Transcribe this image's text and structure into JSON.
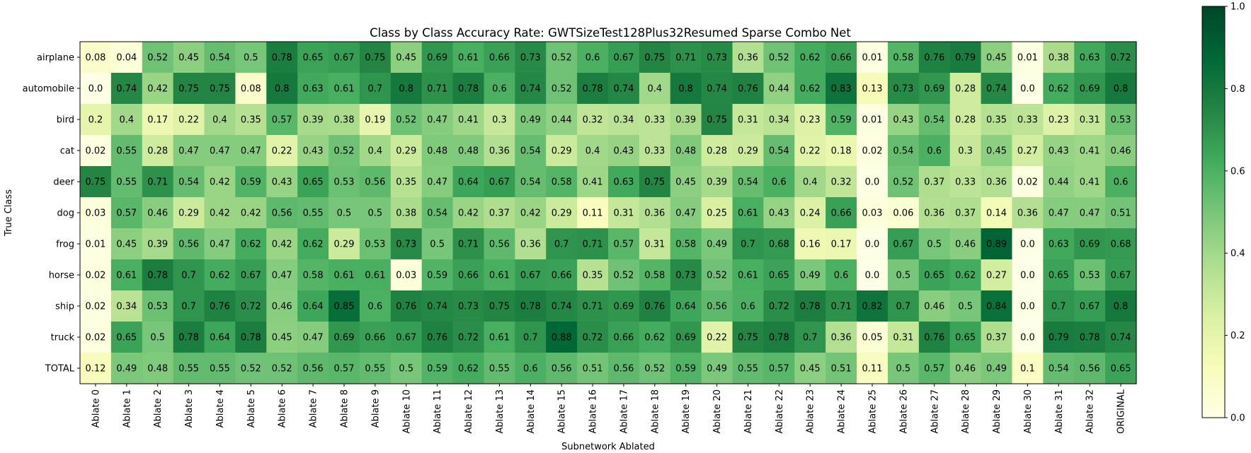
{
  "chart_data": {
    "type": "heatmap",
    "title": "Class by Class Accuracy Rate: GWTSizeTest128Plus32Resumed Sparse Combo Net",
    "xlabel": "Subnetwork Ablated",
    "ylabel": "True Class",
    "x_categories": [
      "Ablate 0",
      "Ablate 1",
      "Ablate 2",
      "Ablate 3",
      "Ablate 4",
      "Ablate 5",
      "Ablate 6",
      "Ablate 7",
      "Ablate 8",
      "Ablate 9",
      "Ablate 10",
      "Ablate 11",
      "Ablate 12",
      "Ablate 13",
      "Ablate 14",
      "Ablate 15",
      "Ablate 16",
      "Ablate 17",
      "Ablate 18",
      "Ablate 19",
      "Ablate 20",
      "Ablate 21",
      "Ablate 22",
      "Ablate 23",
      "Ablate 24",
      "Ablate 25",
      "Ablate 26",
      "Ablate 27",
      "Ablate 28",
      "Ablate 29",
      "Ablate 30",
      "Ablate 31",
      "Ablate 32",
      "ORIGINAL"
    ],
    "y_categories": [
      "airplane",
      "automobile",
      "bird",
      "cat",
      "deer",
      "dog",
      "frog",
      "horse",
      "ship",
      "truck",
      "TOTAL"
    ],
    "values": [
      [
        0.08,
        0.04,
        0.52,
        0.45,
        0.54,
        0.5,
        0.78,
        0.65,
        0.67,
        0.75,
        0.45,
        0.69,
        0.61,
        0.66,
        0.73,
        0.52,
        0.6,
        0.67,
        0.75,
        0.71,
        0.73,
        0.36,
        0.52,
        0.62,
        0.66,
        0.01,
        0.58,
        0.76,
        0.79,
        0.45,
        0.01,
        0.38,
        0.63,
        0.72
      ],
      [
        0.0,
        0.74,
        0.42,
        0.75,
        0.75,
        0.08,
        0.8,
        0.63,
        0.61,
        0.7,
        0.8,
        0.71,
        0.78,
        0.6,
        0.74,
        0.52,
        0.78,
        0.74,
        0.4,
        0.8,
        0.74,
        0.76,
        0.44,
        0.62,
        0.83,
        0.13,
        0.73,
        0.69,
        0.28,
        0.74,
        0.0,
        0.62,
        0.69,
        0.8
      ],
      [
        0.2,
        0.4,
        0.17,
        0.22,
        0.4,
        0.35,
        0.57,
        0.39,
        0.38,
        0.19,
        0.52,
        0.47,
        0.41,
        0.3,
        0.49,
        0.44,
        0.32,
        0.34,
        0.33,
        0.39,
        0.75,
        0.31,
        0.34,
        0.23,
        0.59,
        0.01,
        0.43,
        0.54,
        0.28,
        0.35,
        0.33,
        0.23,
        0.31,
        0.53
      ],
      [
        0.02,
        0.55,
        0.28,
        0.47,
        0.47,
        0.47,
        0.22,
        0.43,
        0.52,
        0.4,
        0.29,
        0.48,
        0.48,
        0.36,
        0.54,
        0.29,
        0.4,
        0.43,
        0.33,
        0.48,
        0.28,
        0.29,
        0.54,
        0.22,
        0.18,
        0.02,
        0.54,
        0.6,
        0.3,
        0.45,
        0.27,
        0.43,
        0.41,
        0.46
      ],
      [
        0.75,
        0.55,
        0.71,
        0.54,
        0.42,
        0.59,
        0.43,
        0.65,
        0.53,
        0.56,
        0.35,
        0.47,
        0.64,
        0.67,
        0.54,
        0.58,
        0.41,
        0.63,
        0.75,
        0.45,
        0.39,
        0.54,
        0.6,
        0.4,
        0.32,
        0.0,
        0.52,
        0.37,
        0.33,
        0.36,
        0.02,
        0.44,
        0.41,
        0.6
      ],
      [
        0.03,
        0.57,
        0.46,
        0.29,
        0.42,
        0.42,
        0.56,
        0.55,
        0.5,
        0.5,
        0.38,
        0.54,
        0.42,
        0.37,
        0.42,
        0.29,
        0.11,
        0.31,
        0.36,
        0.47,
        0.25,
        0.61,
        0.43,
        0.24,
        0.66,
        0.03,
        0.06,
        0.36,
        0.37,
        0.14,
        0.36,
        0.47,
        0.47,
        0.51
      ],
      [
        0.01,
        0.45,
        0.39,
        0.56,
        0.47,
        0.62,
        0.42,
        0.62,
        0.29,
        0.53,
        0.73,
        0.5,
        0.71,
        0.56,
        0.36,
        0.7,
        0.71,
        0.57,
        0.31,
        0.58,
        0.49,
        0.7,
        0.68,
        0.16,
        0.17,
        0.0,
        0.67,
        0.5,
        0.46,
        0.89,
        0.0,
        0.63,
        0.69,
        0.68
      ],
      [
        0.02,
        0.61,
        0.78,
        0.7,
        0.62,
        0.67,
        0.47,
        0.58,
        0.61,
        0.61,
        0.03,
        0.59,
        0.66,
        0.61,
        0.67,
        0.66,
        0.35,
        0.52,
        0.58,
        0.73,
        0.52,
        0.61,
        0.65,
        0.49,
        0.6,
        0.0,
        0.5,
        0.65,
        0.62,
        0.27,
        0.0,
        0.65,
        0.53,
        0.67
      ],
      [
        0.02,
        0.34,
        0.53,
        0.7,
        0.76,
        0.72,
        0.46,
        0.64,
        0.85,
        0.6,
        0.76,
        0.74,
        0.73,
        0.75,
        0.78,
        0.74,
        0.71,
        0.69,
        0.76,
        0.64,
        0.56,
        0.6,
        0.72,
        0.78,
        0.71,
        0.82,
        0.7,
        0.46,
        0.5,
        0.84,
        0.0,
        0.7,
        0.67,
        0.8
      ],
      [
        0.02,
        0.65,
        0.5,
        0.78,
        0.64,
        0.78,
        0.45,
        0.47,
        0.69,
        0.66,
        0.67,
        0.76,
        0.72,
        0.61,
        0.7,
        0.88,
        0.72,
        0.66,
        0.62,
        0.69,
        0.22,
        0.75,
        0.78,
        0.7,
        0.36,
        0.05,
        0.31,
        0.76,
        0.65,
        0.37,
        0.0,
        0.79,
        0.78,
        0.74
      ],
      [
        0.12,
        0.49,
        0.48,
        0.55,
        0.55,
        0.52,
        0.52,
        0.56,
        0.57,
        0.55,
        0.5,
        0.59,
        0.62,
        0.55,
        0.6,
        0.56,
        0.51,
        0.56,
        0.52,
        0.59,
        0.49,
        0.55,
        0.57,
        0.45,
        0.51,
        0.11,
        0.5,
        0.57,
        0.46,
        0.49,
        0.1,
        0.54,
        0.56,
        0.65
      ]
    ],
    "vmin": 0.0,
    "vmax": 1.0,
    "colormap": "YlGn",
    "colormap_stops": [
      "#ffffe5",
      "#f7fcb9",
      "#d9f0a3",
      "#addd8e",
      "#78c679",
      "#41ab5d",
      "#238443",
      "#006837",
      "#004529"
    ],
    "colorbar_ticks": [
      0.0,
      0.2,
      0.4,
      0.6,
      0.8,
      1.0
    ],
    "colorbar_tick_labels": [
      "0.0",
      "0.2",
      "0.4",
      "0.6",
      "0.8",
      "1.0"
    ]
  }
}
